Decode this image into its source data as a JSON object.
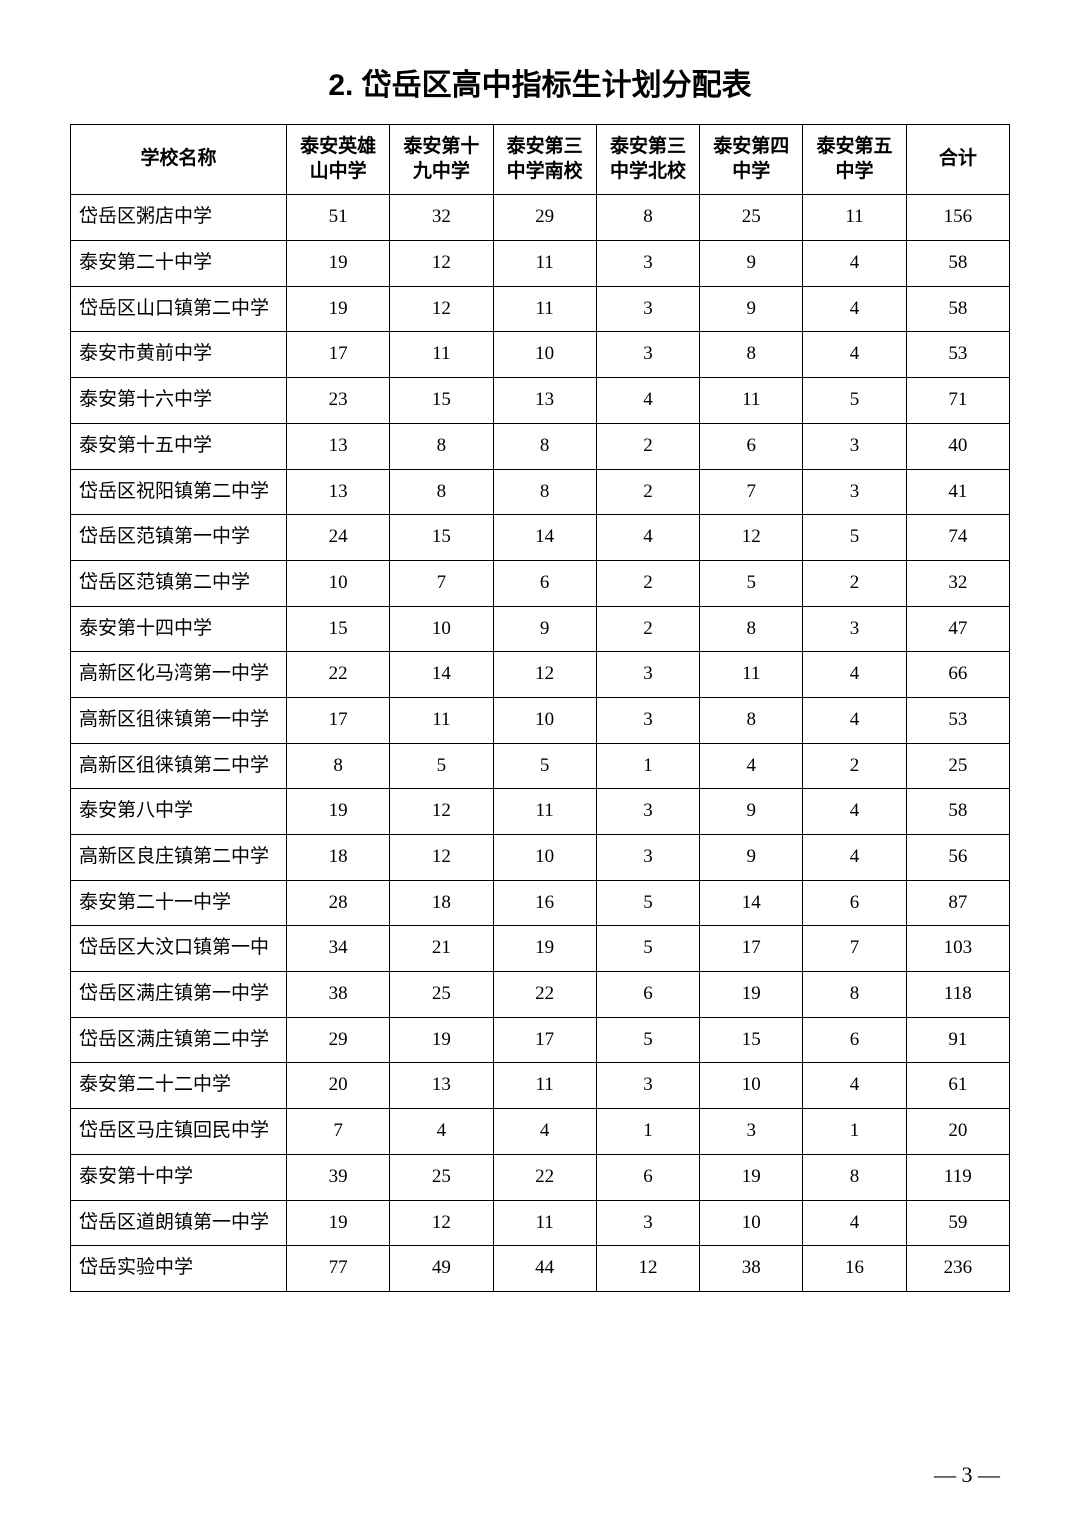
{
  "title": "2. 岱岳区高中指标生计划分配表",
  "headers": {
    "school": "学校名称",
    "col1": "泰安英雄山中学",
    "col2": "泰安第十九中学",
    "col3": "泰安第三中学南校",
    "col4": "泰安第三中学北校",
    "col5": "泰安第四中学",
    "col6": "泰安第五中学",
    "total": "合计"
  },
  "rows": [
    {
      "name": "岱岳区粥店中学",
      "c1": 51,
      "c2": 32,
      "c3": 29,
      "c4": 8,
      "c5": 25,
      "c6": 11,
      "total": 156
    },
    {
      "name": "泰安第二十中学",
      "c1": 19,
      "c2": 12,
      "c3": 11,
      "c4": 3,
      "c5": 9,
      "c6": 4,
      "total": 58
    },
    {
      "name": "岱岳区山口镇第二中学",
      "c1": 19,
      "c2": 12,
      "c3": 11,
      "c4": 3,
      "c5": 9,
      "c6": 4,
      "total": 58
    },
    {
      "name": "泰安市黄前中学",
      "c1": 17,
      "c2": 11,
      "c3": 10,
      "c4": 3,
      "c5": 8,
      "c6": 4,
      "total": 53
    },
    {
      "name": "泰安第十六中学",
      "c1": 23,
      "c2": 15,
      "c3": 13,
      "c4": 4,
      "c5": 11,
      "c6": 5,
      "total": 71
    },
    {
      "name": "泰安第十五中学",
      "c1": 13,
      "c2": 8,
      "c3": 8,
      "c4": 2,
      "c5": 6,
      "c6": 3,
      "total": 40
    },
    {
      "name": "岱岳区祝阳镇第二中学",
      "c1": 13,
      "c2": 8,
      "c3": 8,
      "c4": 2,
      "c5": 7,
      "c6": 3,
      "total": 41
    },
    {
      "name": "岱岳区范镇第一中学",
      "c1": 24,
      "c2": 15,
      "c3": 14,
      "c4": 4,
      "c5": 12,
      "c6": 5,
      "total": 74
    },
    {
      "name": "岱岳区范镇第二中学",
      "c1": 10,
      "c2": 7,
      "c3": 6,
      "c4": 2,
      "c5": 5,
      "c6": 2,
      "total": 32
    },
    {
      "name": "泰安第十四中学",
      "c1": 15,
      "c2": 10,
      "c3": 9,
      "c4": 2,
      "c5": 8,
      "c6": 3,
      "total": 47
    },
    {
      "name": "高新区化马湾第一中学",
      "c1": 22,
      "c2": 14,
      "c3": 12,
      "c4": 3,
      "c5": 11,
      "c6": 4,
      "total": 66
    },
    {
      "name": "高新区徂徕镇第一中学",
      "c1": 17,
      "c2": 11,
      "c3": 10,
      "c4": 3,
      "c5": 8,
      "c6": 4,
      "total": 53
    },
    {
      "name": "高新区徂徕镇第二中学",
      "c1": 8,
      "c2": 5,
      "c3": 5,
      "c4": 1,
      "c5": 4,
      "c6": 2,
      "total": 25
    },
    {
      "name": "泰安第八中学",
      "c1": 19,
      "c2": 12,
      "c3": 11,
      "c4": 3,
      "c5": 9,
      "c6": 4,
      "total": 58
    },
    {
      "name": "高新区良庄镇第二中学",
      "c1": 18,
      "c2": 12,
      "c3": 10,
      "c4": 3,
      "c5": 9,
      "c6": 4,
      "total": 56
    },
    {
      "name": "泰安第二十一中学",
      "c1": 28,
      "c2": 18,
      "c3": 16,
      "c4": 5,
      "c5": 14,
      "c6": 6,
      "total": 87
    },
    {
      "name": "岱岳区大汶口镇第一中",
      "c1": 34,
      "c2": 21,
      "c3": 19,
      "c4": 5,
      "c5": 17,
      "c6": 7,
      "total": 103
    },
    {
      "name": "岱岳区满庄镇第一中学",
      "c1": 38,
      "c2": 25,
      "c3": 22,
      "c4": 6,
      "c5": 19,
      "c6": 8,
      "total": 118
    },
    {
      "name": "岱岳区满庄镇第二中学",
      "c1": 29,
      "c2": 19,
      "c3": 17,
      "c4": 5,
      "c5": 15,
      "c6": 6,
      "total": 91
    },
    {
      "name": "泰安第二十二中学",
      "c1": 20,
      "c2": 13,
      "c3": 11,
      "c4": 3,
      "c5": 10,
      "c6": 4,
      "total": 61
    },
    {
      "name": "岱岳区马庄镇回民中学",
      "c1": 7,
      "c2": 4,
      "c3": 4,
      "c4": 1,
      "c5": 3,
      "c6": 1,
      "total": 20
    },
    {
      "name": "泰安第十中学",
      "c1": 39,
      "c2": 25,
      "c3": 22,
      "c4": 6,
      "c5": 19,
      "c6": 8,
      "total": 119
    },
    {
      "name": "岱岳区道朗镇第一中学",
      "c1": 19,
      "c2": 12,
      "c3": 11,
      "c4": 3,
      "c5": 10,
      "c6": 4,
      "total": 59
    },
    {
      "name": "岱岳实验中学",
      "c1": 77,
      "c2": 49,
      "c3": 44,
      "c4": 12,
      "c5": 38,
      "c6": 16,
      "total": 236
    }
  ],
  "pageNum": "— 3 —"
}
